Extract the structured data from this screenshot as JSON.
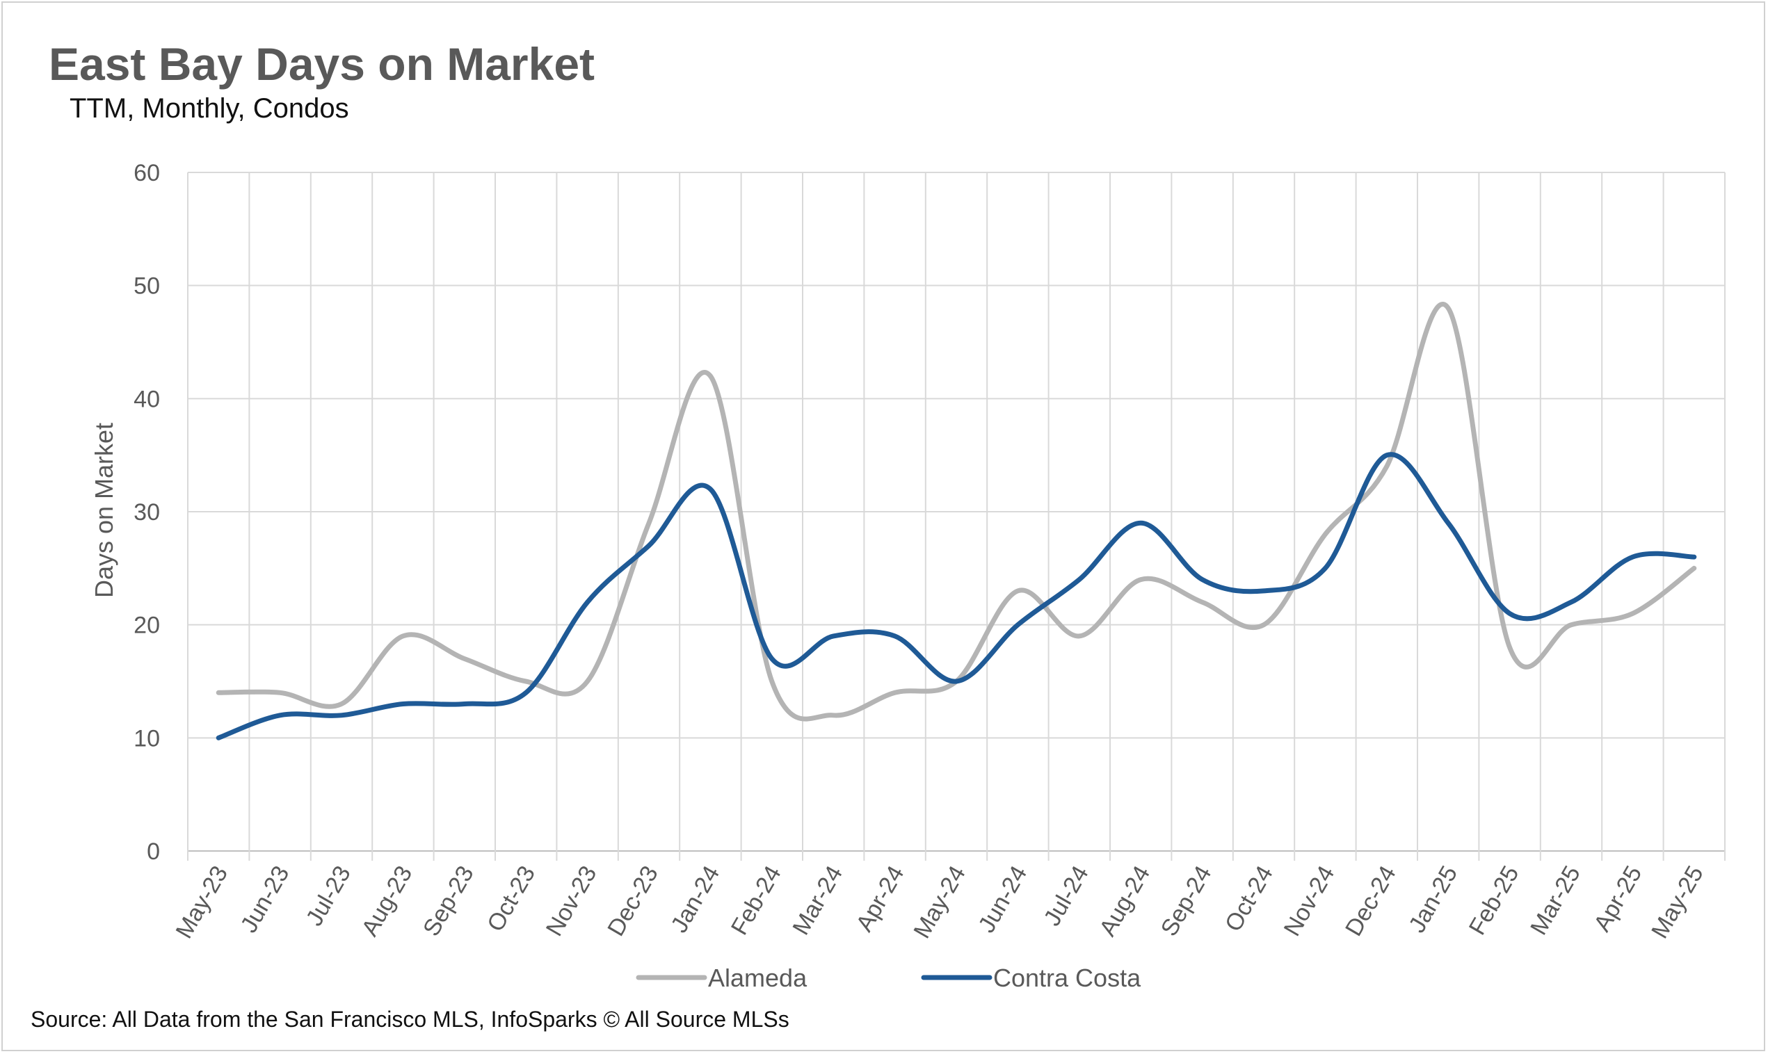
{
  "chart_data": {
    "type": "line",
    "title": "East Bay Days on Market",
    "subtitle": "TTM, Monthly, Condos",
    "ylabel": "Days on Market",
    "xlabel": "",
    "ylim": [
      0,
      60
    ],
    "yticks": [
      0,
      10,
      20,
      30,
      40,
      50,
      60
    ],
    "grid": true,
    "legend_position": "bottom",
    "categories": [
      "May-23",
      "Jun-23",
      "Jul-23",
      "Aug-23",
      "Sep-23",
      "Oct-23",
      "Nov-23",
      "Dec-23",
      "Jan-24",
      "Feb-24",
      "Mar-24",
      "Apr-24",
      "May-24",
      "Jun-24",
      "Jul-24",
      "Aug-24",
      "Sep-24",
      "Oct-24",
      "Nov-24",
      "Dec-24",
      "Jan-25",
      "Feb-25",
      "Mar-25",
      "Apr-25",
      "May-25"
    ],
    "series": [
      {
        "name": "Alameda",
        "color": "#B4B4B4",
        "values": [
          14,
          14,
          13,
          19,
          17,
          15,
          15,
          29,
          42,
          15,
          12,
          14,
          15,
          23,
          19,
          24,
          22,
          20,
          28,
          34,
          48,
          18,
          20,
          21,
          25
        ]
      },
      {
        "name": "Contra Costa",
        "color": "#1F5A96",
        "values": [
          10,
          12,
          12,
          13,
          13,
          14,
          22,
          27,
          32,
          17,
          19,
          19,
          15,
          20,
          24,
          29,
          24,
          23,
          25,
          35,
          29,
          21,
          22,
          26,
          26
        ]
      }
    ]
  },
  "source": "Source: All Data from the San Francisco MLS, InfoSparks © All Source MLSs"
}
